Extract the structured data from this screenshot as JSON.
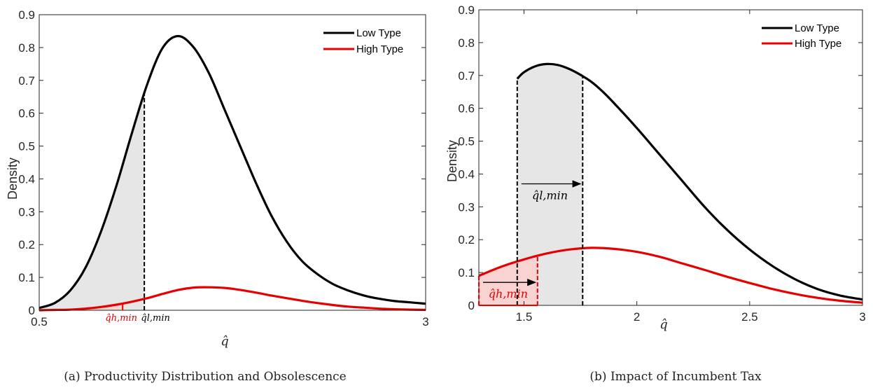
{
  "colors": {
    "low": "#000000",
    "high": "#e60000",
    "shade_gray": "#e6e6e6",
    "shade_red": "#f9d2d2",
    "axis": "#262626"
  },
  "chart_data": [
    {
      "type": "line",
      "caption": "(a) Productivity Distribution and Obsolescence",
      "xlabel": "q̂",
      "ylabel": "Density",
      "xlim": [
        0.5,
        3
      ],
      "ylim": [
        0,
        0.9
      ],
      "xticks": [
        "0.5",
        "3"
      ],
      "yticks": [
        "0",
        "0.1",
        "0.2",
        "0.3",
        "0.4",
        "0.5",
        "0.6",
        "0.7",
        "0.8",
        "0.9"
      ],
      "legend_position": "top-right",
      "series": [
        {
          "name": "Low Type",
          "x": [
            0.5,
            0.6,
            0.7,
            0.8,
            0.9,
            1.0,
            1.1,
            1.2,
            1.3,
            1.4,
            1.5,
            1.6,
            1.7,
            1.8,
            1.9,
            2.0,
            2.1,
            2.2,
            2.3,
            2.4,
            2.5,
            2.6,
            2.7,
            2.8,
            2.9,
            3.0
          ],
          "y": [
            0.007,
            0.022,
            0.06,
            0.13,
            0.24,
            0.38,
            0.54,
            0.69,
            0.8,
            0.835,
            0.8,
            0.72,
            0.61,
            0.5,
            0.39,
            0.29,
            0.21,
            0.15,
            0.11,
            0.08,
            0.06,
            0.045,
            0.035,
            0.028,
            0.024,
            0.02
          ]
        },
        {
          "name": "High Type",
          "x": [
            0.5,
            0.6,
            0.7,
            0.8,
            0.9,
            1.0,
            1.1,
            1.2,
            1.3,
            1.4,
            1.5,
            1.6,
            1.7,
            1.8,
            1.9,
            2.0,
            2.1,
            2.2,
            2.3,
            2.4,
            2.5,
            2.6,
            2.7,
            2.8,
            2.9,
            3.0
          ],
          "y": [
            0.0,
            0.001,
            0.002,
            0.005,
            0.01,
            0.017,
            0.026,
            0.037,
            0.05,
            0.062,
            0.069,
            0.07,
            0.068,
            0.062,
            0.054,
            0.045,
            0.037,
            0.029,
            0.022,
            0.016,
            0.011,
            0.008,
            0.005,
            0.003,
            0.002,
            0.001
          ]
        }
      ],
      "thresholds": [
        {
          "label": "q̂h,min",
          "x": 1.04,
          "y": 0.03,
          "color": "#e60000"
        },
        {
          "label": "q̂l,min",
          "x": 1.18,
          "y": 0.77,
          "color": "#000000"
        }
      ]
    },
    {
      "type": "line",
      "caption": "(b) Impact of Incumbent Tax",
      "xlabel": "q̂",
      "ylabel": "Density",
      "xlim": [
        1.3,
        3
      ],
      "ylim": [
        0,
        0.9
      ],
      "xticks": [
        "1.5",
        "2",
        "2.5",
        "3"
      ],
      "yticks": [
        "0",
        "0.1",
        "0.2",
        "0.3",
        "0.4",
        "0.5",
        "0.6",
        "0.7",
        "0.8",
        "0.9"
      ],
      "legend_position": "top-right",
      "series": [
        {
          "name": "Low Type",
          "x": [
            1.47,
            1.5,
            1.55,
            1.6,
            1.65,
            1.7,
            1.75,
            1.8,
            1.85,
            1.9,
            2.0,
            2.1,
            2.2,
            2.3,
            2.4,
            2.5,
            2.6,
            2.7,
            2.8,
            2.9,
            3.0
          ],
          "y": [
            0.69,
            0.71,
            0.728,
            0.735,
            0.732,
            0.72,
            0.702,
            0.68,
            0.65,
            0.615,
            0.54,
            0.46,
            0.38,
            0.3,
            0.23,
            0.17,
            0.12,
            0.08,
            0.05,
            0.03,
            0.018
          ]
        },
        {
          "name": "High Type",
          "x": [
            1.3,
            1.4,
            1.5,
            1.6,
            1.7,
            1.8,
            1.9,
            2.0,
            2.1,
            2.2,
            2.3,
            2.4,
            2.5,
            2.6,
            2.7,
            2.8,
            2.9,
            3.0
          ],
          "y": [
            0.09,
            0.118,
            0.14,
            0.158,
            0.17,
            0.175,
            0.172,
            0.163,
            0.148,
            0.128,
            0.108,
            0.087,
            0.068,
            0.05,
            0.035,
            0.023,
            0.014,
            0.008
          ]
        }
      ],
      "shifts": [
        {
          "label": "q̂l,min",
          "from": 1.47,
          "to": 1.76,
          "y": 0.37
        },
        {
          "label": "q̂h,min",
          "from": 1.3,
          "to": 1.56,
          "y": 0.07
        }
      ]
    }
  ]
}
